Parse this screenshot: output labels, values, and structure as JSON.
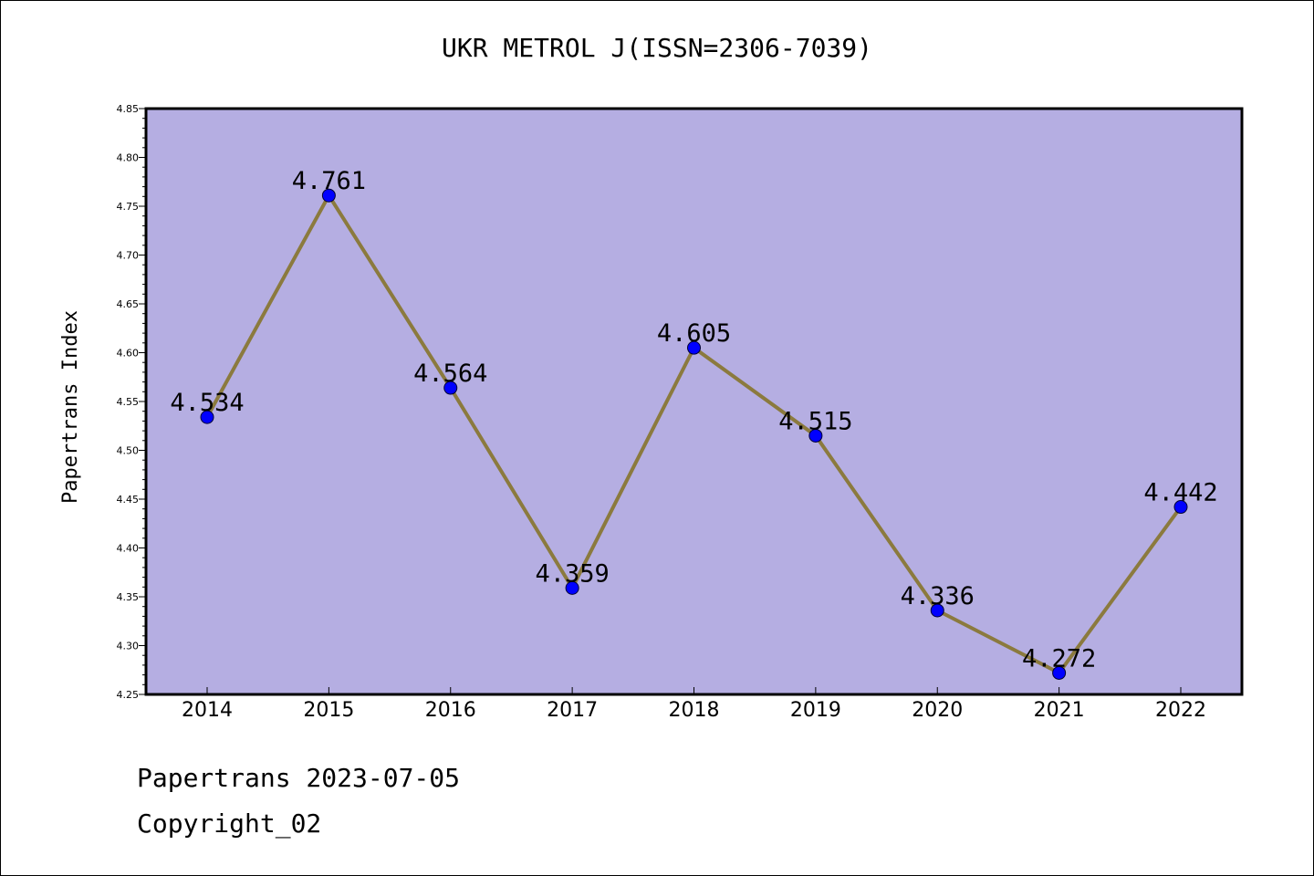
{
  "title": "UKR METROL J(ISSN=2306-7039)",
  "footer": {
    "date_line": "Papertrans 2023-07-05",
    "copyright_line": "Copyright_02"
  },
  "colors": {
    "plot_background": "#b5aee2",
    "line": "#8b7a3e",
    "marker": "#0000ff",
    "axis": "#000000"
  },
  "chart_data": {
    "type": "line",
    "title": "UKR METROL J(ISSN=2306-7039)",
    "xlabel": "",
    "ylabel": "Papertrans Index",
    "categories": [
      "2014",
      "2015",
      "2016",
      "2017",
      "2018",
      "2019",
      "2020",
      "2021",
      "2022"
    ],
    "values": [
      4.534,
      4.761,
      4.564,
      4.359,
      4.605,
      4.515,
      4.336,
      4.272,
      4.442
    ],
    "data_labels": [
      "4.534",
      "4.761",
      "4.564",
      "4.359",
      "4.605",
      "4.515",
      "4.336",
      "4.272",
      "4.442"
    ],
    "ylim": [
      4.25,
      4.85
    ],
    "yticks": [
      "4.25",
      "4.30",
      "4.35",
      "4.40",
      "4.45",
      "4.50",
      "4.55",
      "4.60",
      "4.65",
      "4.70",
      "4.75",
      "4.80",
      "4.85"
    ],
    "grid": false,
    "legend": "none"
  }
}
